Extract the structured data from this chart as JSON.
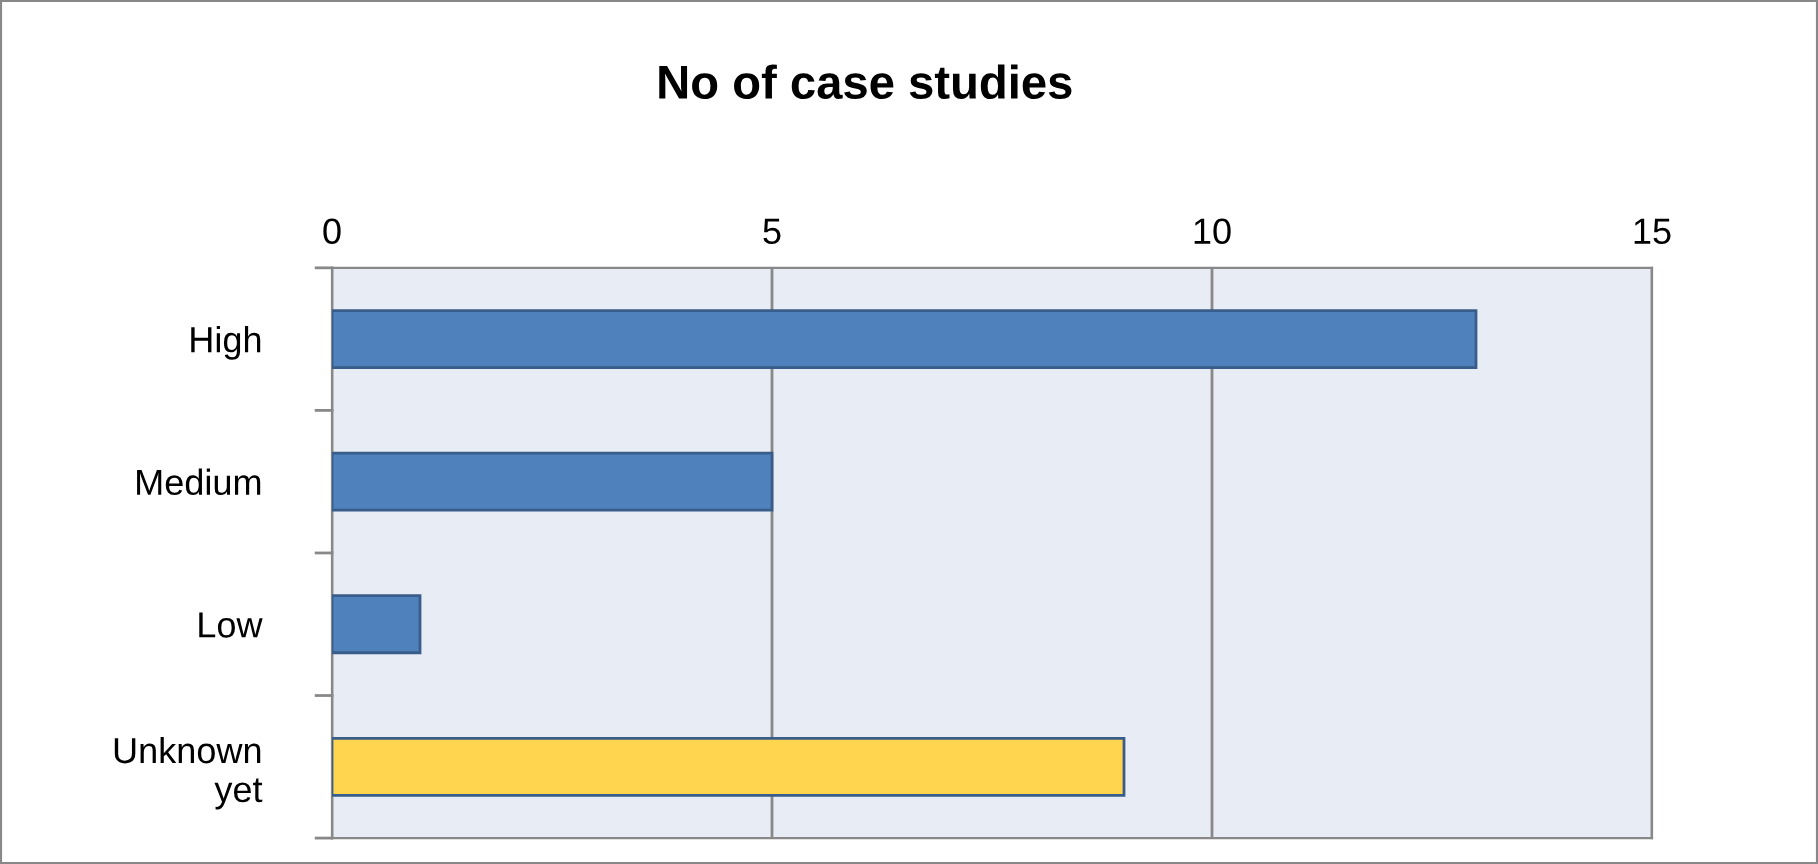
{
  "chart_data": {
    "type": "bar",
    "orientation": "horizontal",
    "title": "No of case studies",
    "categories": [
      "High",
      "Medium",
      "Low",
      "Unknown\nyet"
    ],
    "values": [
      13,
      5,
      1,
      9
    ],
    "colors": [
      "#4f81bd",
      "#4f81bd",
      "#4f81bd",
      "#ffd54f"
    ],
    "xlim": [
      0,
      15
    ],
    "xticks": [
      0,
      5,
      10,
      15
    ],
    "grid": "x"
  }
}
